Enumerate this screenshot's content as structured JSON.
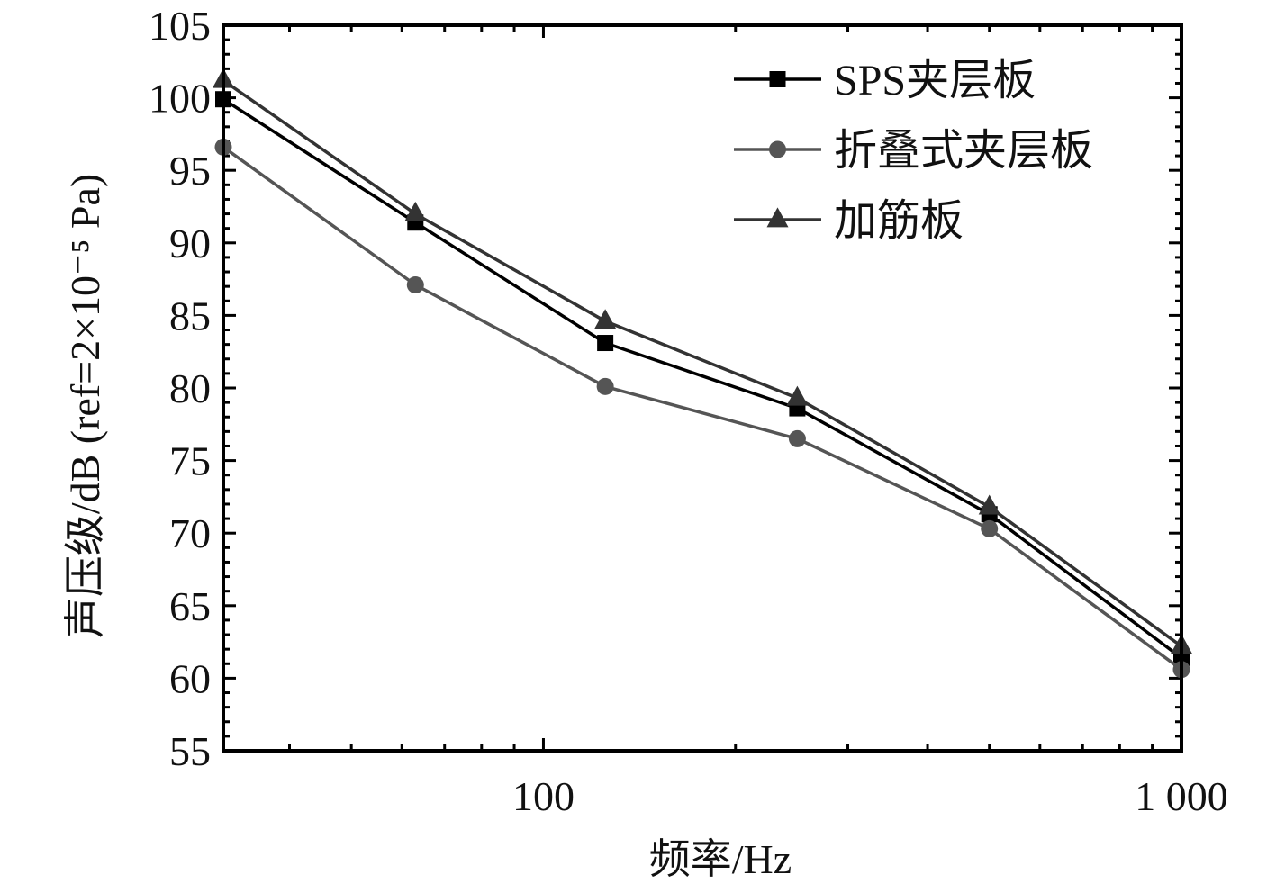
{
  "chart_data": {
    "type": "line",
    "xscale": "log",
    "xlim": [
      31.5,
      1000
    ],
    "ylim": [
      55,
      105
    ],
    "x": [
      31.5,
      63,
      125,
      250,
      500,
      1000
    ],
    "xticks_labeled": [
      {
        "value": 100,
        "label": "100"
      },
      {
        "value": 1000,
        "label": "1 000"
      }
    ],
    "yticks": [
      55,
      60,
      65,
      70,
      75,
      80,
      85,
      90,
      95,
      100,
      105
    ],
    "xlabel": "频率/Hz",
    "ylabel": "声压级/dB (ref=2×10⁻⁵ Pa)",
    "legend_position": "top-right",
    "series": [
      {
        "name": "SPS夹层板",
        "marker": "square",
        "color": "#000000",
        "values": [
          99.9,
          91.4,
          83.1,
          78.6,
          71.3,
          61.4
        ]
      },
      {
        "name": "折叠式夹层板",
        "marker": "circle",
        "color": "#555555",
        "values": [
          96.6,
          87.1,
          80.1,
          76.5,
          70.3,
          60.6
        ]
      },
      {
        "name": "加筋板",
        "marker": "triangle",
        "color": "#333333",
        "values": [
          101.2,
          92.0,
          84.6,
          79.3,
          71.8,
          62.2
        ]
      }
    ]
  }
}
